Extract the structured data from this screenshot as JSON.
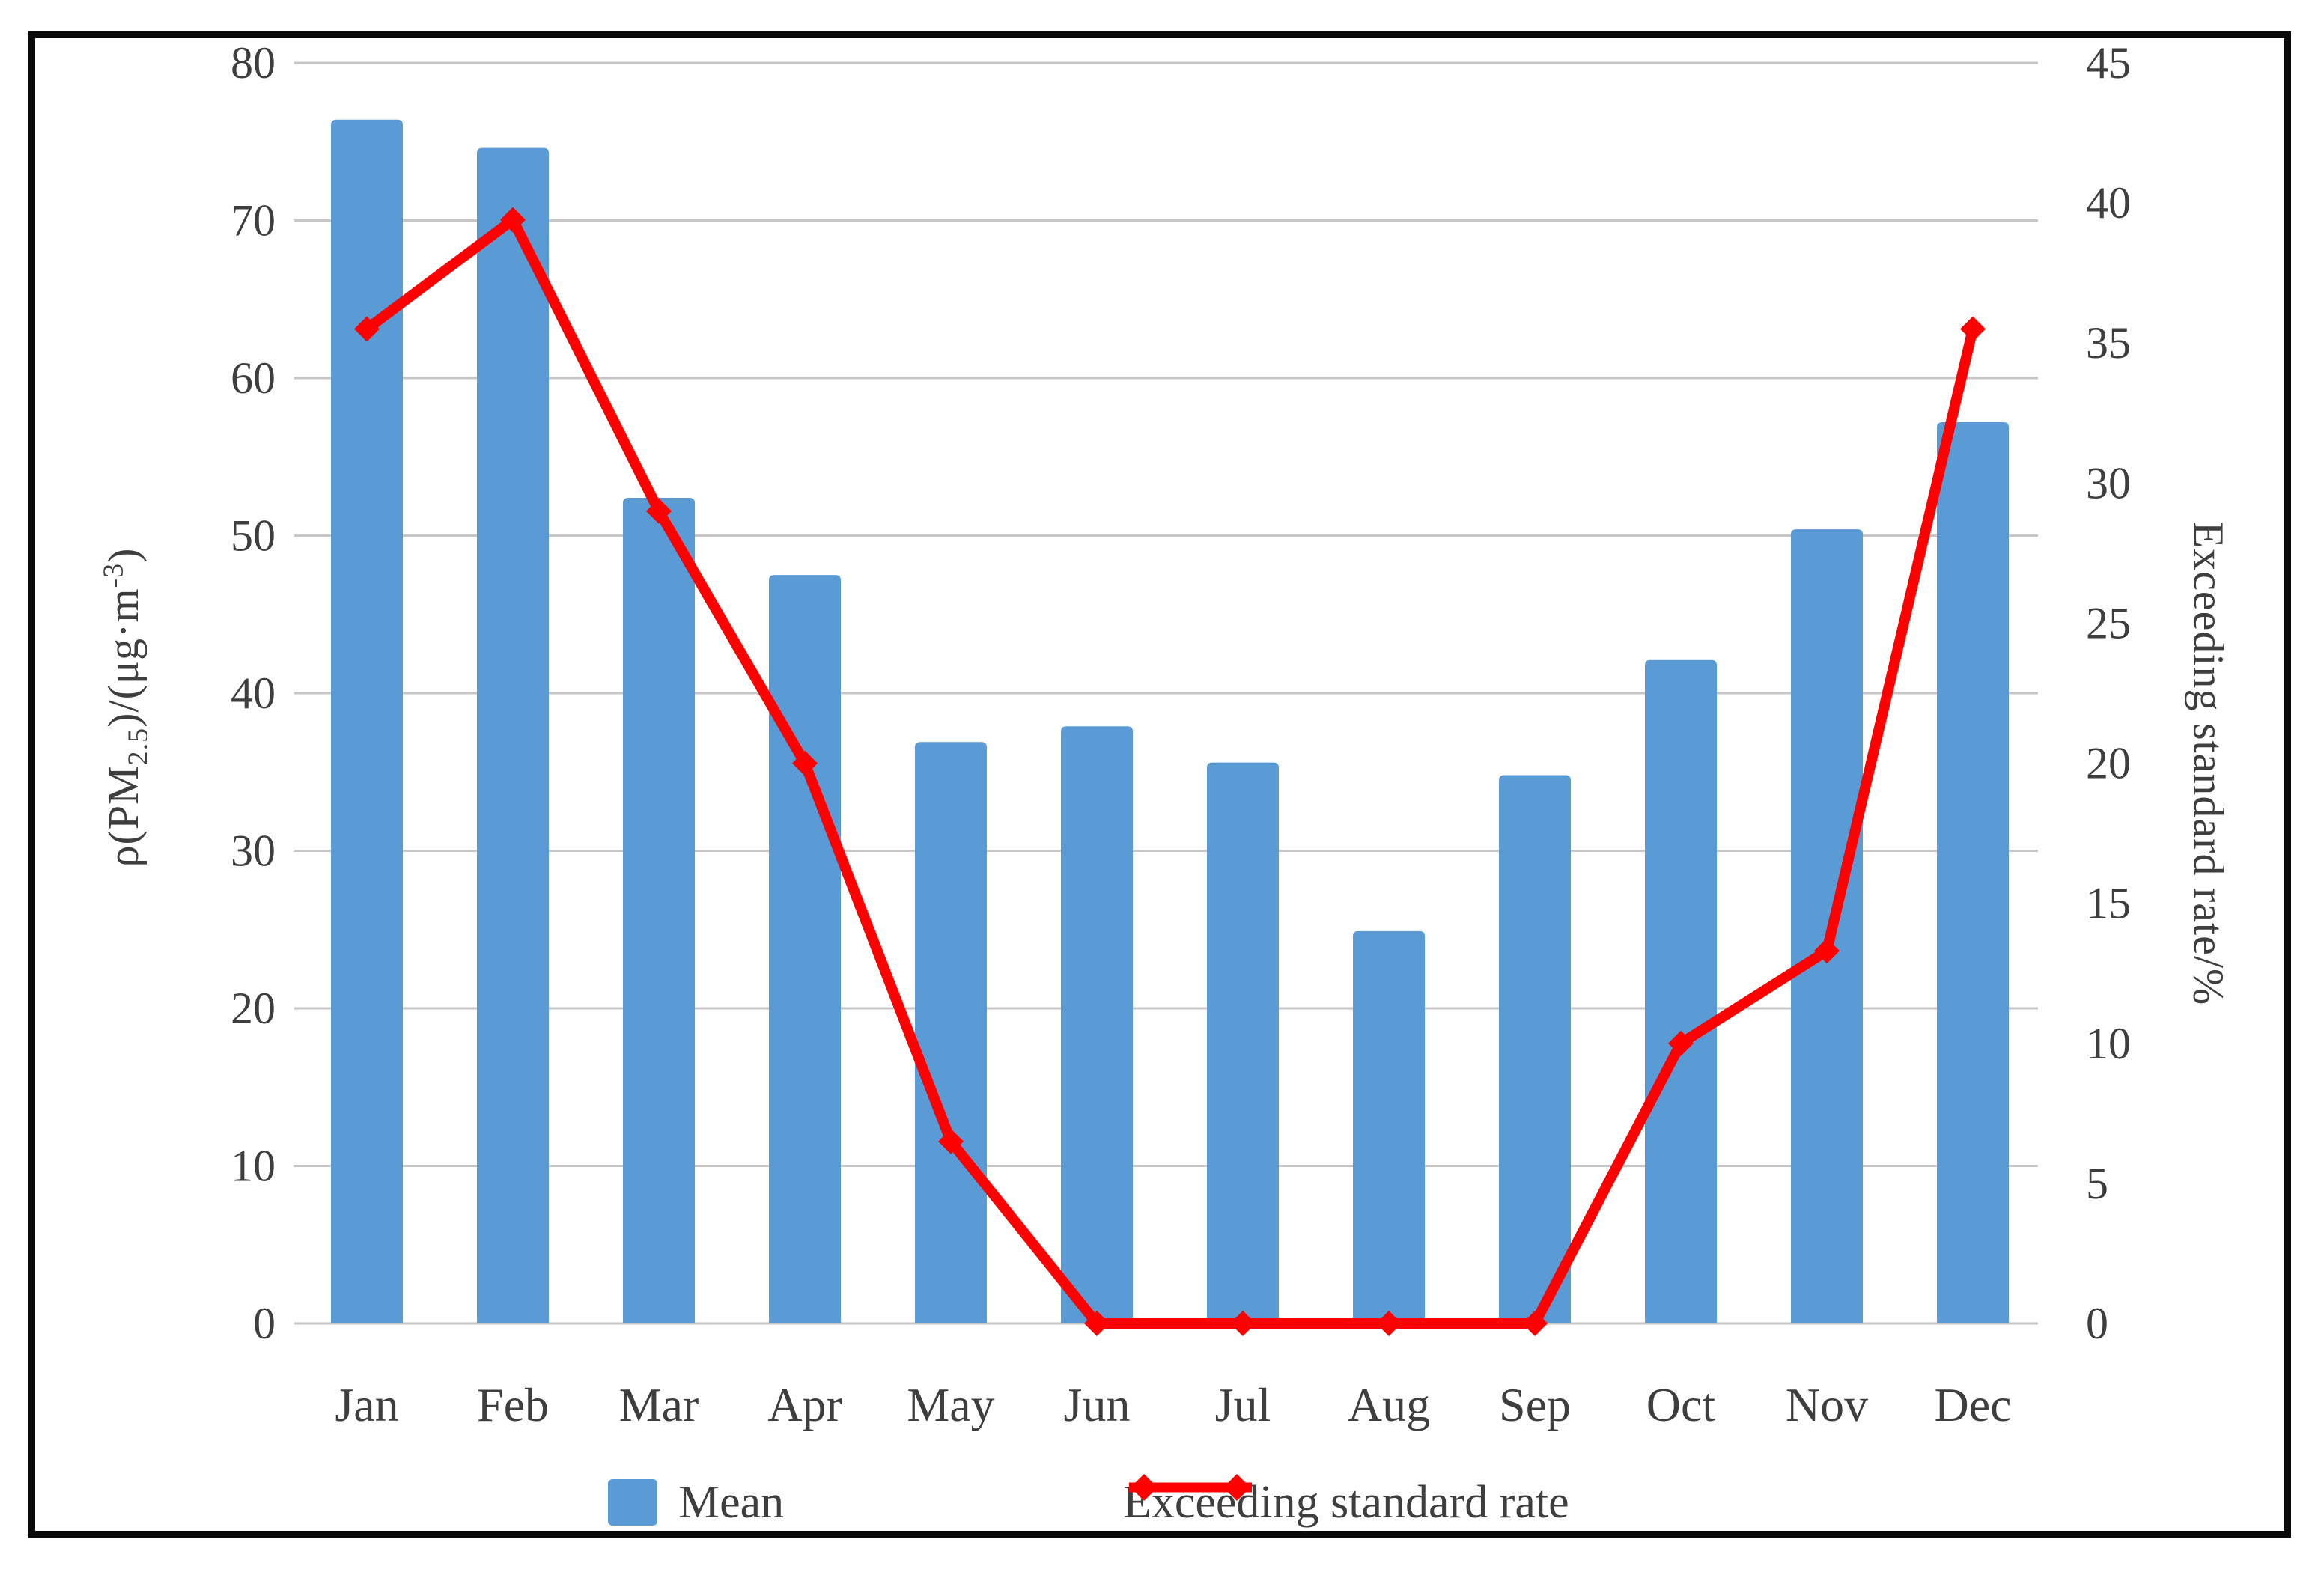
{
  "figure": {
    "left_axis_title": {
      "p1": "ρ(PM",
      "sub": "2.5",
      "p2": ")/(μg·m",
      "sup": "-3",
      "p3": ")"
    },
    "right_axis_title": "Exceeding standard rate/%",
    "legend": {
      "mean_label": "Mean",
      "rate_label": "Exceeding standard rate"
    },
    "colors": {
      "bar": "#5B9BD5",
      "line": "#FE0000",
      "grid": "#C7C5C5",
      "text": "#3E3E3E",
      "frame": "#0A0A0A"
    }
  },
  "chart_data": {
    "type": "bar",
    "subtype": "combo-bar-line-dual-axis",
    "title": "",
    "categories": [
      "Jan",
      "Feb",
      "Mar",
      "Apr",
      "May",
      "Jun",
      "Jul",
      "Aug",
      "Sep",
      "Oct",
      "Nov",
      "Dec"
    ],
    "series": [
      {
        "name": "Mean",
        "type": "bar",
        "axis": "left",
        "color": "#5B9BD5",
        "values": [
          76.4,
          74.6,
          52.4,
          47.5,
          36.9,
          37.9,
          35.6,
          24.9,
          34.8,
          42.1,
          50.4,
          57.2
        ]
      },
      {
        "name": "Exceeding standard rate",
        "type": "line",
        "axis": "right",
        "color": "#FE0000",
        "marker": "diamond",
        "values": [
          35.5,
          39.4,
          29.0,
          20.0,
          6.5,
          0,
          0,
          0,
          0,
          10.0,
          13.3,
          35.5
        ]
      }
    ],
    "left_axis": {
      "label": "ρ(PM2.5)/(μg·m-3)",
      "min": 0,
      "max": 80,
      "step": 10
    },
    "right_axis": {
      "label": "Exceeding standard rate/%",
      "min": 0,
      "max": 45,
      "step": 5
    },
    "grid": "horizontal",
    "legend_position": "bottom"
  }
}
